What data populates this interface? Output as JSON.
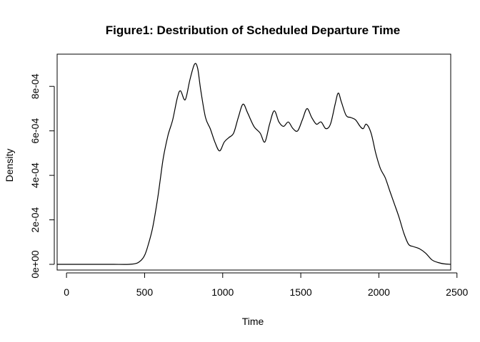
{
  "chart_data": {
    "type": "line",
    "title": "Figure1: Destribution of Scheduled Departure Time",
    "xlabel": "Time",
    "ylabel": "Density",
    "xlim": [
      -60,
      2460
    ],
    "ylim": [
      0,
      0.0009
    ],
    "xticks": [
      0,
      500,
      1000,
      1500,
      2000,
      2500
    ],
    "xtick_labels": [
      "0",
      "500",
      "1000",
      "1500",
      "2000",
      "2500"
    ],
    "yticks": [
      0,
      0.0002,
      0.0004,
      0.0006,
      0.0008
    ],
    "ytick_labels": [
      "0e+00",
      "2e-04",
      "4e-04",
      "6e-04",
      "8e-04"
    ],
    "grid": false,
    "legend": "none",
    "series": [
      {
        "color": "#000000",
        "x": [
          -60,
          0,
          100,
          200,
          300,
          400,
          450,
          480,
          500,
          520,
          550,
          580,
          600,
          620,
          650,
          680,
          710,
          730,
          760,
          790,
          820,
          840,
          860,
          890,
          920,
          950,
          980,
          1010,
          1040,
          1070,
          1100,
          1130,
          1160,
          1200,
          1240,
          1270,
          1300,
          1330,
          1360,
          1390,
          1420,
          1450,
          1480,
          1510,
          1540,
          1570,
          1600,
          1630,
          1660,
          1690,
          1720,
          1740,
          1760,
          1790,
          1820,
          1850,
          1880,
          1900,
          1920,
          1950,
          1980,
          2010,
          2040,
          2070,
          2100,
          2130,
          2160,
          2190,
          2220,
          2260,
          2300,
          2340,
          2380,
          2420,
          2460
        ],
        "values": [
          0.0,
          0.0,
          0.0,
          0.0,
          0.0,
          0.0,
          5e-06,
          2e-05,
          4e-05,
          8e-05,
          0.00016,
          0.00028,
          0.00038,
          0.00048,
          0.00058,
          0.00065,
          0.00075,
          0.00078,
          0.00074,
          0.00083,
          0.0009,
          0.00088,
          0.00078,
          0.00066,
          0.00061,
          0.00055,
          0.00051,
          0.00055,
          0.00057,
          0.00059,
          0.00066,
          0.00072,
          0.00068,
          0.00062,
          0.00059,
          0.00055,
          0.00063,
          0.00069,
          0.00064,
          0.00062,
          0.00064,
          0.00061,
          0.0006,
          0.00065,
          0.0007,
          0.00066,
          0.00063,
          0.00064,
          0.00061,
          0.00063,
          0.00072,
          0.00077,
          0.00073,
          0.00067,
          0.00066,
          0.00065,
          0.00062,
          0.00061,
          0.00063,
          0.00059,
          0.0005,
          0.00043,
          0.00039,
          0.00033,
          0.00027,
          0.00021,
          0.00014,
          9e-05,
          8e-05,
          7e-05,
          5e-05,
          2e-05,
          8e-06,
          2e-06,
          0.0
        ]
      }
    ]
  }
}
